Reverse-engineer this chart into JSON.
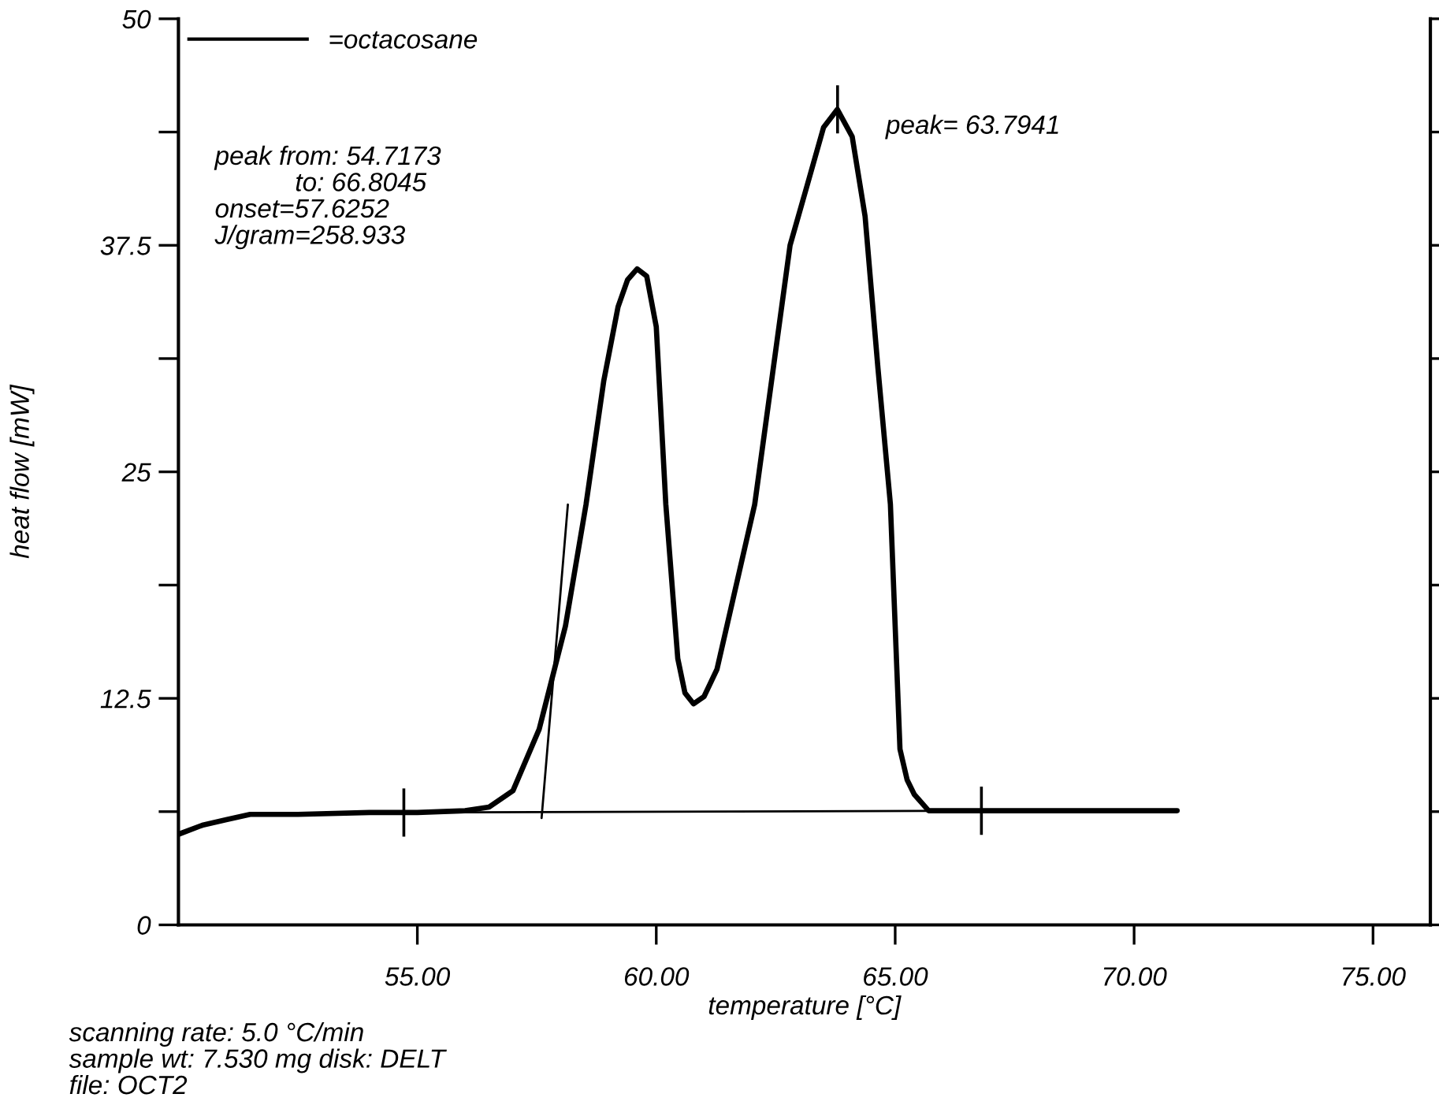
{
  "chart_data": {
    "type": "line",
    "xlabel": "temperature [°C]",
    "ylabel": "heat flow [mW]",
    "xlim": [
      50,
      76.2
    ],
    "ylim": [
      0,
      50
    ],
    "xticks": [
      {
        "value": 55,
        "label": "55.00"
      },
      {
        "value": 60,
        "label": "60.00"
      },
      {
        "value": 65,
        "label": "65.00"
      },
      {
        "value": 70,
        "label": "70.00"
      },
      {
        "value": 75,
        "label": "75.00"
      }
    ],
    "yticks": [
      0,
      {
        "value": 6.25,
        "label": null
      },
      12.5,
      {
        "value": 18.75,
        "label": null
      },
      25,
      {
        "value": 31.25,
        "label": null
      },
      37.5,
      {
        "value": 43.75,
        "label": null
      },
      50
    ],
    "grid": false,
    "legend": "top left",
    "marker": "none",
    "line_style": "solid",
    "series": [
      {
        "name": "=octacosane",
        "color": "#000000",
        "x": [
          50,
          50.5,
          51,
          51.5,
          52.5,
          54,
          55,
          56,
          56.5,
          57,
          57.55,
          58.1,
          58.53,
          58.9,
          59.2,
          59.4,
          59.6,
          59.8,
          60.0,
          60.2,
          60.45,
          60.6,
          60.78,
          61.0,
          61.27,
          62.06,
          62.8,
          63.2,
          63.5,
          63.79,
          64.1,
          64.37,
          64.64,
          64.9,
          65.1,
          65.25,
          65.4,
          65.7,
          66.5,
          68,
          70.9
        ],
        "values": [
          5.0,
          5.5,
          5.8,
          6.1,
          6.1,
          6.2,
          6.2,
          6.3,
          6.5,
          7.4,
          10.8,
          16.5,
          23.2,
          30,
          34.1,
          35.6,
          36.2,
          35.8,
          33,
          23.2,
          14.7,
          12.8,
          12.2,
          12.6,
          14.1,
          23.2,
          37.5,
          41.2,
          44,
          45.0,
          43.5,
          39.1,
          30.7,
          23.2,
          9.7,
          8,
          7.2,
          6.3,
          6.3,
          6.3,
          6.3
        ]
      },
      {
        "type": "line",
        "color": "#000000",
        "x": [
          54.7173,
          66.8045
        ],
        "values": [
          6.2,
          6.3
        ]
      },
      {
        "type": "line",
        "color": "#000000",
        "x": [
          57.6,
          58.15
        ],
        "values": [
          5.9,
          23.2
        ]
      }
    ],
    "annotations": [
      {
        "text": "peak= 63.7941",
        "x": 63.7941,
        "y": 45.0
      },
      "peak from: 54.7173\n           to: 66.8045\nonset=57.6252\nJ/gram=258.933",
      "scanning rate: 5.0 °C/min\nsample wt: 7.530 mg disk: DELT\nfile: OCT2"
    ]
  }
}
